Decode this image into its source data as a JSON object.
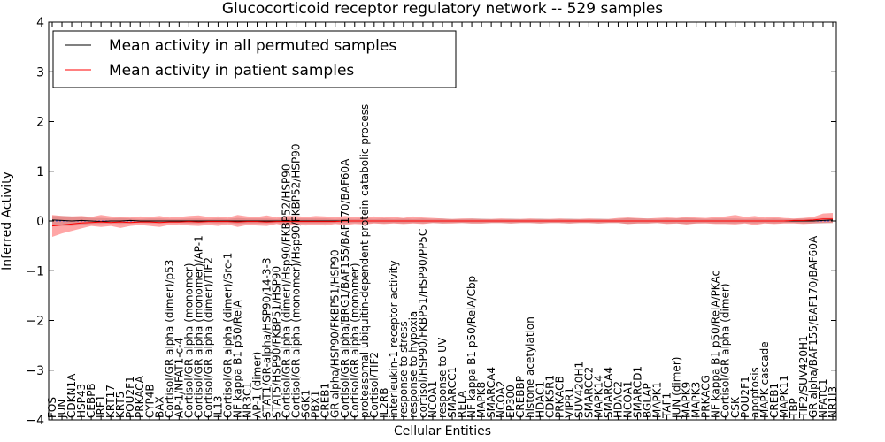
{
  "chart_data": {
    "type": "line",
    "title": "Glucocorticoid receptor regulatory network -- 529 samples",
    "xlabel": "Cellular Entities",
    "ylabel": "Inferred Activity",
    "ylim": [
      -4,
      4
    ],
    "yticks": [
      -4,
      -3,
      -2,
      -1,
      0,
      1,
      2,
      3,
      4
    ],
    "legend_position": "top-left",
    "grid": false,
    "colors": {
      "permuted": "#000000",
      "patient": "#ff0000",
      "patient_band": "#ff0000",
      "permuted_band": "#999999"
    },
    "categories": [
      "FOS",
      "JUN",
      "CDKN1A",
      "HSP43",
      "CEBPB",
      "IRF1",
      "KRT17",
      "KRT5",
      "POU2F1",
      "PRKACA",
      "CYP4B",
      "BAX",
      "Cortisol/GR alpha (dimer)/p53",
      "AP-1/NFAT1-c-4",
      "Cortisol/GR alpha (monomer)",
      "Cortisol/GR alpha (monomer)/AP-1",
      "Cortisol/GR alpha (dimer)/TIF2",
      "IL13",
      "Cortisol/GR alpha (dimer)/Src-1",
      "NF kappa B1 p50/RelA",
      "NR3C1",
      "AP-1 (dimer)",
      "STAT1/GR-alpha/HSP90/14-3-3",
      "STAT5/HSP90/FKBP51/HSP90",
      "Cortisol/GR alpha (dimer)/Hsp90/FKBP52/HSP90",
      "Cortisol/GR alpha (monomer)/Hsp90/FKBP52/HSP90",
      "SGK1",
      "PBX1",
      "CREB1",
      "GR alpha/HSP90/FKBP51/HSP90",
      "Cortisol/GR alpha/BRG1/BAF155/BAF170/BAF60A",
      "Cortisol/GR alpha (monomer)",
      "proteasomal ubiquitin-dependent protein catabolic process",
      "Cortisol/TIF2",
      "IL2RB",
      "interleukin-1 receptor activity",
      "response to stress",
      "response to hypoxia",
      "cortisol/HSP90/FKBP51/HSP90/PP5C",
      "NCOA1",
      "response to UV",
      "SMARCC1",
      "RELA",
      "NF kappa B1 p50/RelA/Cbp",
      "MAPK8",
      "SMARCA4",
      "NCOA2",
      "EP300",
      "CREBBP",
      "histone acetylation",
      "HDAC1",
      "CDK5R1",
      "PRKACB",
      "VIPR1",
      "SUV420H1",
      "SMARCC2",
      "MAPK14",
      "SMARCA4",
      "HDAC2",
      "NCOA1",
      "SMARCD1",
      "BGLAP",
      "MAPK1",
      "TAF1",
      "JUN (dimer)",
      "MAPK9",
      "MAPK3",
      "PRKACG",
      "NF kappa B1 p50/RelA/PKAc",
      "Cortisol/GR alpha (dimer)",
      "CSK",
      "POU2F1",
      "apoptosis",
      "MAPK cascade",
      "CREB1",
      "MAPK11",
      "TBP",
      "TIF2/SUV420H1",
      "GR alpha/BAF155/BAF170/BAF60A",
      "NFATC1",
      "NR1I3"
    ],
    "series": [
      {
        "name": "Mean activity in all permuted samples",
        "values": [
          0.02,
          0.01,
          0.0,
          0.01,
          0.0,
          -0.01,
          0.0,
          0.0,
          0.01,
          0.0,
          0.0,
          0.0,
          0.0,
          0.0,
          0.0,
          0.0,
          0.0,
          0.0,
          0.0,
          0.0,
          0.0,
          0.0,
          0.0,
          0.0,
          0.0,
          0.0,
          0.0,
          0.0,
          0.0,
          0.0,
          0.0,
          0.0,
          0.0,
          0.0,
          0.0,
          0.0,
          0.0,
          0.0,
          0.0,
          0.0,
          0.0,
          0.0,
          0.0,
          0.0,
          0.0,
          0.0,
          0.0,
          0.0,
          0.0,
          0.0,
          0.0,
          0.0,
          0.0,
          0.0,
          0.0,
          0.0,
          0.0,
          0.0,
          0.0,
          0.0,
          0.0,
          0.0,
          0.0,
          0.0,
          0.0,
          0.0,
          0.0,
          0.0,
          0.0,
          0.0,
          0.0,
          0.0,
          0.0,
          0.0,
          0.0,
          0.0,
          0.0,
          0.0,
          0.0,
          0.01,
          0.02
        ],
        "band_low": [
          -0.08,
          -0.1,
          -0.1,
          -0.08,
          -0.06,
          -0.06,
          -0.05,
          -0.06,
          -0.05,
          -0.04,
          -0.05,
          -0.05,
          -0.04,
          -0.04,
          -0.05,
          -0.05,
          -0.04,
          -0.05,
          -0.04,
          -0.06,
          -0.05,
          -0.05,
          -0.05,
          -0.04,
          -0.06,
          -0.05,
          -0.05,
          -0.05,
          -0.05,
          -0.04,
          -0.05,
          -0.04,
          -0.05,
          -0.04,
          -0.05,
          -0.04,
          -0.05,
          -0.04,
          -0.05,
          -0.04,
          -0.05,
          -0.04,
          -0.04,
          -0.05,
          -0.05,
          -0.04,
          -0.04,
          -0.05,
          -0.04,
          -0.04,
          -0.05,
          -0.04,
          -0.04,
          -0.05,
          -0.04,
          -0.04,
          -0.05,
          -0.04,
          -0.04,
          -0.06,
          -0.05,
          -0.05,
          -0.04,
          -0.05,
          -0.05,
          -0.06,
          -0.05,
          -0.04,
          -0.05,
          -0.05,
          -0.05,
          -0.04,
          -0.05,
          -0.04,
          -0.05,
          -0.04,
          -0.04,
          -0.05,
          -0.05,
          -0.05,
          -0.04
        ],
        "band_high": [
          0.1,
          0.1,
          0.09,
          0.08,
          0.06,
          0.06,
          0.05,
          0.06,
          0.05,
          0.04,
          0.05,
          0.05,
          0.04,
          0.04,
          0.05,
          0.05,
          0.04,
          0.05,
          0.04,
          0.06,
          0.05,
          0.05,
          0.05,
          0.04,
          0.06,
          0.05,
          0.05,
          0.05,
          0.05,
          0.04,
          0.05,
          0.04,
          0.05,
          0.04,
          0.05,
          0.04,
          0.05,
          0.04,
          0.05,
          0.04,
          0.05,
          0.04,
          0.04,
          0.05,
          0.05,
          0.04,
          0.04,
          0.05,
          0.04,
          0.04,
          0.05,
          0.04,
          0.04,
          0.05,
          0.04,
          0.04,
          0.05,
          0.04,
          0.04,
          0.06,
          0.05,
          0.05,
          0.04,
          0.05,
          0.05,
          0.06,
          0.05,
          0.04,
          0.05,
          0.05,
          0.05,
          0.04,
          0.05,
          0.04,
          0.05,
          0.04,
          0.04,
          0.05,
          0.05,
          0.06,
          0.06
        ]
      },
      {
        "name": "Mean activity in patient samples",
        "values": [
          -0.1,
          -0.08,
          -0.06,
          -0.04,
          -0.03,
          -0.02,
          -0.03,
          -0.02,
          -0.03,
          -0.02,
          -0.02,
          -0.03,
          -0.02,
          -0.02,
          -0.01,
          -0.02,
          -0.01,
          -0.01,
          -0.01,
          -0.02,
          -0.01,
          -0.01,
          -0.02,
          -0.01,
          -0.01,
          -0.01,
          -0.01,
          -0.01,
          -0.01,
          -0.01,
          0.0,
          0.0,
          0.0,
          0.0,
          0.0,
          0.0,
          0.0,
          0.0,
          0.0,
          0.0,
          0.0,
          0.0,
          0.0,
          0.0,
          0.0,
          0.0,
          0.0,
          0.0,
          0.0,
          0.0,
          0.0,
          0.0,
          0.0,
          0.0,
          0.0,
          0.0,
          0.0,
          0.0,
          0.0,
          0.0,
          0.0,
          0.0,
          0.0,
          0.0,
          0.0,
          0.0,
          0.0,
          0.0,
          0.0,
          0.0,
          0.0,
          0.0,
          0.0,
          0.0,
          0.0,
          0.0,
          0.01,
          0.01,
          0.02,
          0.04,
          0.04
        ],
        "band_low": [
          -0.32,
          -0.25,
          -0.2,
          -0.15,
          -0.1,
          -0.12,
          -0.1,
          -0.14,
          -0.1,
          -0.08,
          -0.1,
          -0.12,
          -0.08,
          -0.07,
          -0.09,
          -0.1,
          -0.08,
          -0.1,
          -0.07,
          -0.12,
          -0.08,
          -0.09,
          -0.1,
          -0.06,
          -0.1,
          -0.08,
          -0.09,
          -0.08,
          -0.09,
          -0.06,
          -0.08,
          -0.06,
          -0.07,
          -0.05,
          -0.06,
          -0.05,
          -0.06,
          -0.05,
          -0.06,
          -0.04,
          -0.05,
          -0.05,
          -0.04,
          -0.05,
          -0.05,
          -0.04,
          -0.04,
          -0.05,
          -0.04,
          -0.04,
          -0.05,
          -0.04,
          -0.04,
          -0.05,
          -0.04,
          -0.04,
          -0.05,
          -0.04,
          -0.04,
          -0.06,
          -0.05,
          -0.05,
          -0.04,
          -0.06,
          -0.05,
          -0.07,
          -0.05,
          -0.05,
          -0.06,
          -0.06,
          -0.07,
          -0.05,
          -0.08,
          -0.05,
          -0.06,
          -0.05,
          -0.05,
          -0.06,
          -0.05,
          -0.04,
          -0.04
        ],
        "band_high": [
          0.12,
          0.1,
          0.09,
          0.1,
          0.08,
          0.12,
          0.09,
          0.08,
          0.07,
          0.09,
          0.08,
          0.1,
          0.07,
          0.08,
          0.1,
          0.11,
          0.08,
          0.09,
          0.07,
          0.12,
          0.09,
          0.08,
          0.11,
          0.07,
          0.1,
          0.1,
          0.08,
          0.1,
          0.09,
          0.07,
          0.1,
          0.08,
          0.07,
          0.09,
          0.07,
          0.08,
          0.06,
          0.09,
          0.07,
          0.06,
          0.05,
          0.04,
          0.05,
          0.05,
          0.04,
          0.04,
          0.05,
          0.04,
          0.04,
          0.05,
          0.04,
          0.04,
          0.05,
          0.04,
          0.04,
          0.05,
          0.04,
          0.04,
          0.06,
          0.07,
          0.06,
          0.05,
          0.06,
          0.07,
          0.06,
          0.08,
          0.07,
          0.06,
          0.08,
          0.09,
          0.12,
          0.08,
          0.1,
          0.07,
          0.08,
          0.06,
          0.05,
          0.06,
          0.08,
          0.15,
          0.16
        ]
      }
    ]
  }
}
